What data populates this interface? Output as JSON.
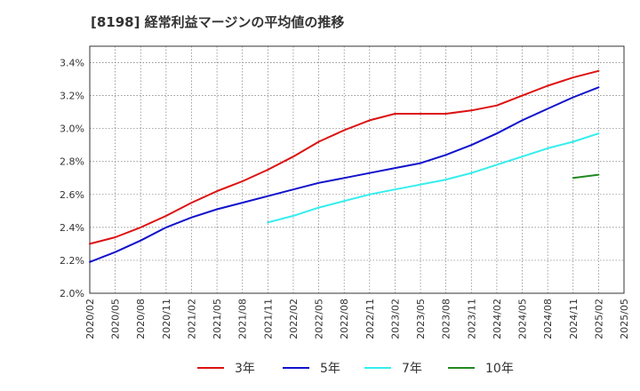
{
  "chart_data": {
    "type": "line",
    "title": "[8198]  経常利益マージンの平均値の推移",
    "xlabel": "",
    "ylabel": "",
    "x_ticks": [
      "2020/02",
      "2020/05",
      "2020/08",
      "2020/11",
      "2021/02",
      "2021/05",
      "2021/08",
      "2021/11",
      "2022/02",
      "2022/05",
      "2022/08",
      "2022/11",
      "2023/02",
      "2023/05",
      "2023/08",
      "2023/11",
      "2024/02",
      "2024/05",
      "2024/08",
      "2024/11",
      "2025/02",
      "2025/05"
    ],
    "y_ticks": [
      "2.0%",
      "2.2%",
      "2.4%",
      "2.6%",
      "2.8%",
      "3.0%",
      "3.2%",
      "3.4%"
    ],
    "ylim": [
      2.0,
      3.5
    ],
    "grid": true,
    "legend_position": "bottom",
    "series": [
      {
        "name": "3年",
        "color": "#dd1111",
        "x": [
          "2020/02",
          "2020/05",
          "2020/08",
          "2020/11",
          "2021/02",
          "2021/05",
          "2021/08",
          "2021/11",
          "2022/02",
          "2022/05",
          "2022/08",
          "2022/11",
          "2023/02",
          "2023/05",
          "2023/08",
          "2023/11",
          "2024/02",
          "2024/05",
          "2024/08",
          "2024/11",
          "2025/02"
        ],
        "values": [
          2.3,
          2.34,
          2.4,
          2.47,
          2.55,
          2.62,
          2.68,
          2.75,
          2.83,
          2.92,
          2.99,
          3.05,
          3.09,
          3.09,
          3.09,
          3.11,
          3.14,
          3.2,
          3.26,
          3.31,
          3.35
        ]
      },
      {
        "name": "5年",
        "color": "#1111cc",
        "x": [
          "2020/02",
          "2020/05",
          "2020/08",
          "2020/11",
          "2021/02",
          "2021/05",
          "2021/08",
          "2021/11",
          "2022/02",
          "2022/05",
          "2022/08",
          "2022/11",
          "2023/02",
          "2023/05",
          "2023/08",
          "2023/11",
          "2024/02",
          "2024/05",
          "2024/08",
          "2024/11",
          "2025/02"
        ],
        "values": [
          2.19,
          2.25,
          2.32,
          2.4,
          2.46,
          2.51,
          2.55,
          2.59,
          2.63,
          2.67,
          2.7,
          2.73,
          2.76,
          2.79,
          2.84,
          2.9,
          2.97,
          3.05,
          3.12,
          3.19,
          3.25
        ]
      },
      {
        "name": "7年",
        "color": "#33eeee",
        "x": [
          "2021/11",
          "2022/02",
          "2022/05",
          "2022/08",
          "2022/11",
          "2023/02",
          "2023/05",
          "2023/08",
          "2023/11",
          "2024/02",
          "2024/05",
          "2024/08",
          "2024/11",
          "2025/02"
        ],
        "values": [
          2.43,
          2.47,
          2.52,
          2.56,
          2.6,
          2.63,
          2.66,
          2.69,
          2.73,
          2.78,
          2.83,
          2.88,
          2.92,
          2.97
        ]
      },
      {
        "name": "10年",
        "color": "#228822",
        "x": [
          "2024/11",
          "2025/02"
        ],
        "values": [
          2.7,
          2.72
        ]
      }
    ]
  }
}
